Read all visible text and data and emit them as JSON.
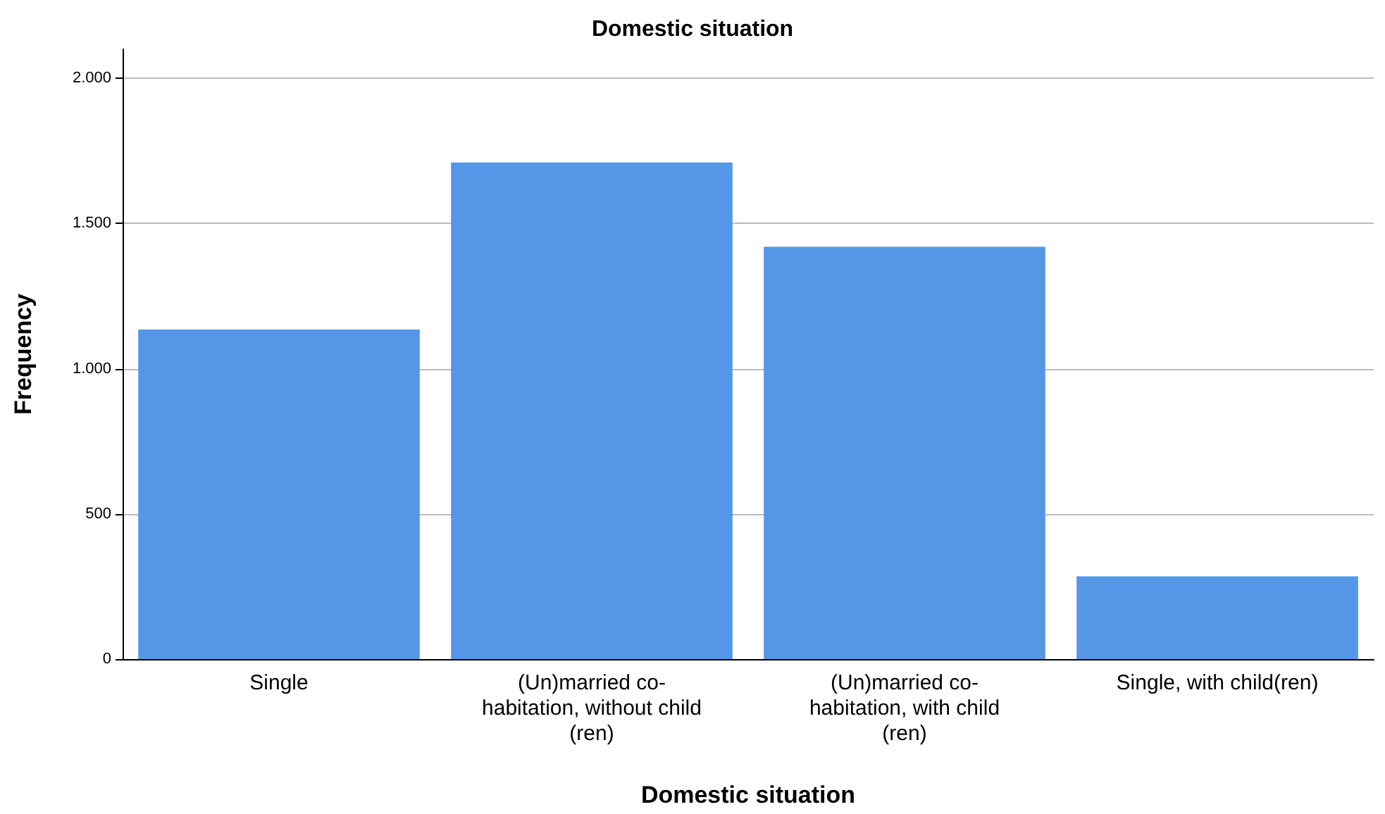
{
  "chart_data": {
    "type": "bar",
    "title": "Domestic situation",
    "xlabel": "Domestic situation",
    "ylabel": "Frequency",
    "categories": [
      "Single",
      "(Un)married co-\nhabitation, without child\n(ren)",
      "(Un)married co-\nhabitation, with child\n(ren)",
      "Single, with child(ren)"
    ],
    "values": [
      1135,
      1710,
      1420,
      285
    ],
    "color": "#5596e6",
    "ylim": [
      0,
      2100
    ],
    "yticks": [
      {
        "value": 0,
        "label": "0"
      },
      {
        "value": 500,
        "label": "500"
      },
      {
        "value": 1000,
        "label": "1.000"
      },
      {
        "value": 1500,
        "label": "1.500"
      },
      {
        "value": 2000,
        "label": "2.000"
      }
    ],
    "grid": "y"
  }
}
